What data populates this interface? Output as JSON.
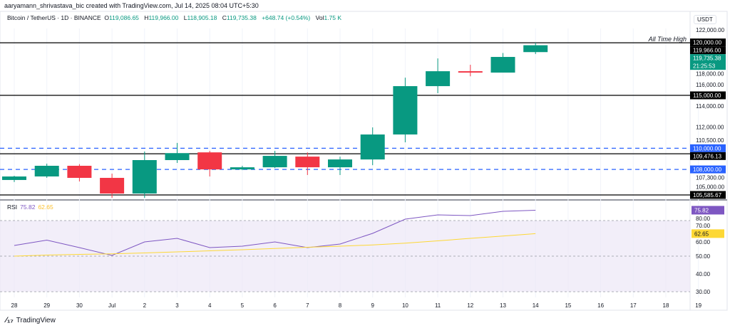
{
  "credit": "aaryamann_shrivastava_bic created with TradingView.com, Jul 14, 2025 08:04 UTC+5:30",
  "symbol": "Bitcoin / TetherUS · 1D · BINANCE",
  "ohlc": {
    "o_label": "O",
    "o": "119,086.65",
    "h_label": "H",
    "h": "119,966.00",
    "l_label": "L",
    "l": "118,905.18",
    "c_label": "C",
    "c": "119,735.38",
    "change": "+648.74 (+0.54%)",
    "vol_label": "Vol",
    "vol": "1.75 K"
  },
  "currency": "USDT",
  "colors": {
    "up": "#089981",
    "down": "#f23645",
    "level": "#000000",
    "dashed": "#2962ff",
    "rsi": "#7e57c2",
    "rsi_ma": "#fdd835",
    "rsi_band": "#ede7f6"
  },
  "price_axis": {
    "ticks": [
      "122,000.00",
      "118,000.00",
      "116,000.00",
      "114,000.00",
      "112,000.00",
      "110,500.00",
      "107,300.00",
      "105,000.00"
    ],
    "tick_values": [
      122000,
      118000,
      116000,
      114000,
      112000,
      110500,
      107300,
      105000
    ],
    "labels": [
      {
        "text": "120,000.00",
        "value": 120000,
        "style": "black"
      },
      {
        "text": "119,966.00",
        "value": 119966,
        "style": "black"
      },
      {
        "text": "119,735.38",
        "value": 119735.38,
        "style": "green"
      },
      {
        "text": "115,000.00",
        "value": 115000,
        "style": "black"
      },
      {
        "text": "110,000.00",
        "value": 110000,
        "style": "blue"
      },
      {
        "text": "109,476.13",
        "value": 109476.13,
        "style": "black"
      },
      {
        "text": "108,000.00",
        "value": 108000,
        "style": "blue"
      },
      {
        "text": "105,585.67",
        "value": 105585.67,
        "style": "black"
      }
    ],
    "countdown": "21:25:53"
  },
  "levels": [
    {
      "value": 119966,
      "style": "solid",
      "annotation": "All Time High"
    },
    {
      "value": 115000,
      "style": "solid"
    },
    {
      "value": 110000,
      "style": "dashed"
    },
    {
      "value": 109476.13,
      "style": "solid"
    },
    {
      "value": 108000,
      "style": "dashed"
    },
    {
      "value": 105585.67,
      "style": "solid"
    }
  ],
  "dates": [
    "28",
    "29",
    "30",
    "Jul",
    "2",
    "3",
    "4",
    "5",
    "6",
    "7",
    "8",
    "9",
    "10",
    "11",
    "12",
    "13",
    "14",
    "15",
    "16",
    "17",
    "18",
    "19"
  ],
  "candles": [
    {
      "d": "28",
      "o": 107000,
      "h": 107400,
      "l": 106800,
      "c": 107330
    },
    {
      "d": "29",
      "o": 107333,
      "h": 108540,
      "l": 107200,
      "c": 108342
    },
    {
      "d": "30",
      "o": 108342,
      "h": 108500,
      "l": 106860,
      "c": 107200
    },
    {
      "d": "Jul",
      "o": 107200,
      "h": 107600,
      "l": 105310,
      "c": 105720
    },
    {
      "d": "2",
      "o": 105720,
      "h": 109690,
      "l": 105310,
      "c": 108880
    },
    {
      "d": "3",
      "o": 108880,
      "h": 110500,
      "l": 108610,
      "c": 109540
    },
    {
      "d": "4",
      "o": 109610,
      "h": 109750,
      "l": 107330,
      "c": 108000
    },
    {
      "d": "5",
      "o": 108000,
      "h": 108340,
      "l": 107930,
      "c": 108200
    },
    {
      "d": "6",
      "o": 108200,
      "h": 109750,
      "l": 108130,
      "c": 109280
    },
    {
      "d": "7",
      "o": 109210,
      "h": 109610,
      "l": 107470,
      "c": 108200
    },
    {
      "d": "8",
      "o": 108200,
      "h": 109200,
      "l": 107470,
      "c": 108940
    },
    {
      "d": "9",
      "o": 108940,
      "h": 111970,
      "l": 108400,
      "c": 111300
    },
    {
      "d": "10",
      "o": 111300,
      "h": 116670,
      "l": 110560,
      "c": 115870
    },
    {
      "d": "11",
      "o": 115870,
      "h": 118490,
      "l": 115200,
      "c": 117280
    },
    {
      "d": "12",
      "o": 117280,
      "h": 117890,
      "l": 116800,
      "c": 117150
    },
    {
      "d": "13",
      "o": 117150,
      "h": 119000,
      "l": 117150,
      "c": 118630
    },
    {
      "d": "14",
      "o": 119086.65,
      "h": 119966,
      "l": 118905.18,
      "c": 119735.38
    }
  ],
  "rsi": {
    "label": "RSI",
    "value": "75.82",
    "ma_value": "62.65",
    "axis_ticks": [
      "80.00",
      "70.00",
      "60.00",
      "50.00",
      "40.00",
      "30.00"
    ],
    "axis_values": [
      80,
      70,
      60,
      50,
      40,
      30
    ],
    "band": [
      30,
      70
    ],
    "series": [
      56,
      59,
      54.8,
      50.4,
      58,
      60,
      54.8,
      55.6,
      58,
      54.8,
      56.8,
      62.8,
      70.8,
      73.2,
      72.8,
      75.2,
      75.82
    ],
    "ma": [
      50,
      50.6,
      51,
      51.3,
      51.8,
      52.4,
      53,
      53.6,
      54.3,
      55,
      55.6,
      56.3,
      57.3,
      58.6,
      60,
      61.3,
      62.65
    ]
  },
  "footer": {
    "brand": "TradingView"
  }
}
